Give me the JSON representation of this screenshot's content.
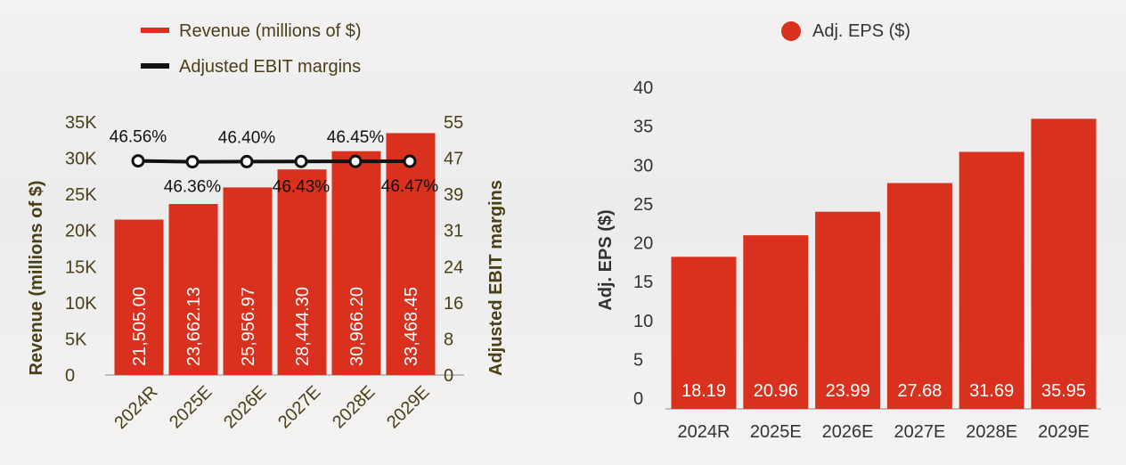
{
  "colors": {
    "bar": "#d9311d",
    "line": "#111111",
    "tick_left": "#4a3f17",
    "tick_right": "#4a3f17",
    "tick_eps": "#333333",
    "label_inside": "#ffffff",
    "axis": "#8c8c8c"
  },
  "chart_data": [
    {
      "type": "bar",
      "title": "",
      "legend": [
        {
          "label": "Revenue (millions of $)",
          "marker": "bar"
        },
        {
          "label": "Adjusted EBIT margins",
          "marker": "line"
        }
      ],
      "categories": [
        "2024R",
        "2025E",
        "2026E",
        "2027E",
        "2028E",
        "2029E"
      ],
      "series": [
        {
          "name": "Revenue (millions of $)",
          "kind": "bar",
          "axis": "left",
          "values": [
            21505.0,
            23662.13,
            25956.97,
            28444.3,
            30966.2,
            33468.45
          ],
          "value_labels": [
            "21,505.00",
            "23,662.13",
            "25,956.97",
            "28,444.30",
            "30,966.20",
            "33,468.45"
          ]
        },
        {
          "name": "Adjusted EBIT margins",
          "kind": "line",
          "axis": "right",
          "values": [
            46.56,
            46.36,
            46.4,
            46.43,
            46.45,
            46.47
          ],
          "value_labels": [
            "46.56%",
            "46.36%",
            "46.40%",
            "46.43%",
            "46.45%",
            "46.47%"
          ]
        }
      ],
      "ylabel": "Revenue (millions of $)",
      "ylim": [
        0,
        35000
      ],
      "yticks": [
        "0",
        "5K",
        "10K",
        "15K",
        "20K",
        "25K",
        "30K",
        "35K"
      ],
      "y2label": "Adjusted EBIT margins",
      "y2lim": [
        0,
        55
      ],
      "y2ticks": [
        "0",
        "8",
        "16",
        "24",
        "31",
        "39",
        "47",
        "55"
      ],
      "xlabel": "",
      "legend_position": "top-left",
      "grid": false
    },
    {
      "type": "bar",
      "title": "",
      "legend": [
        {
          "label": "Adj. EPS ($)",
          "marker": "dot"
        }
      ],
      "categories": [
        "2024R",
        "2025E",
        "2026E",
        "2027E",
        "2028E",
        "2029E"
      ],
      "series": [
        {
          "name": "Adj. EPS ($)",
          "kind": "bar",
          "values": [
            18.19,
            20.96,
            23.99,
            27.68,
            31.69,
            35.95
          ],
          "value_labels": [
            "18.19",
            "20.96",
            "23.99",
            "27.68",
            "31.69",
            "35.95"
          ]
        }
      ],
      "ylabel": "Adj. EPS ($)",
      "ylim": [
        0,
        40
      ],
      "yticks": [
        "0",
        "5",
        "10",
        "15",
        "20",
        "25",
        "30",
        "35",
        "40"
      ],
      "xlabel": "",
      "legend_position": "top-center",
      "grid": false
    }
  ]
}
